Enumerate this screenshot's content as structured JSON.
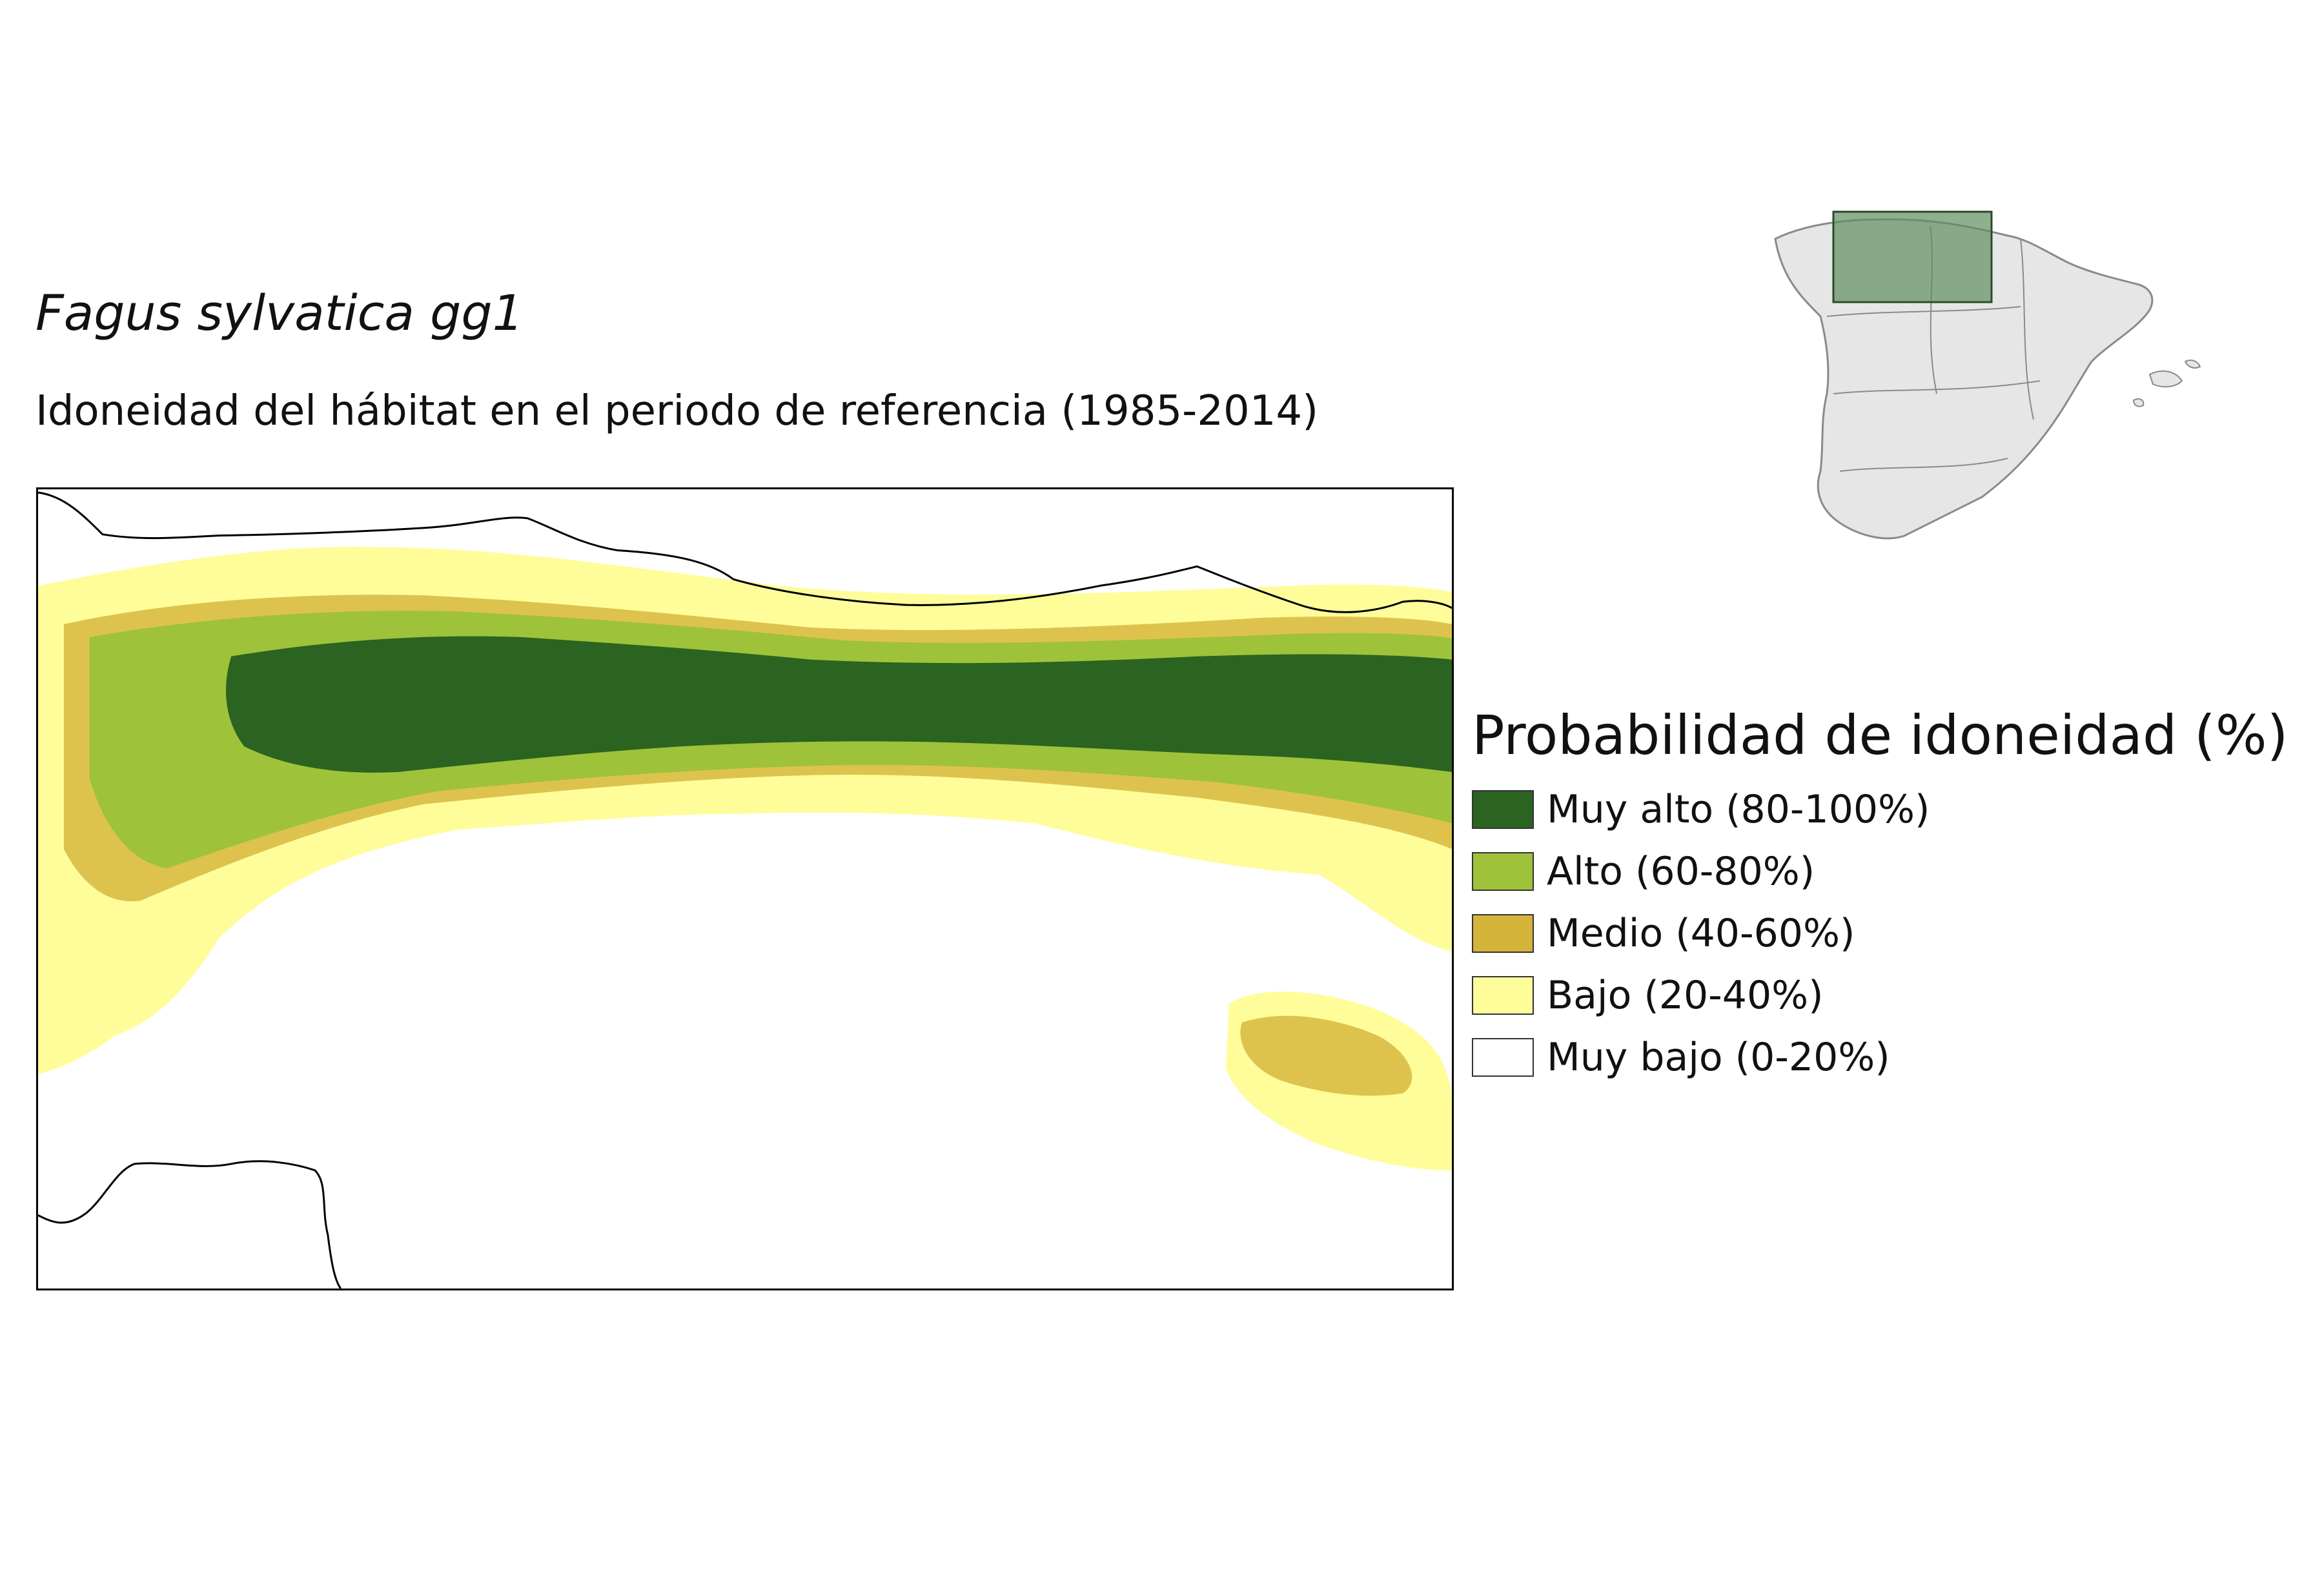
{
  "title": "Fagus sylvatica gg1",
  "subtitle": "Idoneidad del hábitat en el periodo de referencia (1985-2014)",
  "legend": {
    "title": "Probabilidad de idoneidad (%)",
    "items": [
      {
        "label": "Muy alto (80-100%)",
        "color": "#2a6420"
      },
      {
        "label": "Alto (60-80%)",
        "color": "#9fc23b"
      },
      {
        "label": "Medio (40-60%)",
        "color": "#d4b43a"
      },
      {
        "label": "Bajo (20-40%)",
        "color": "#fefd9a"
      },
      {
        "label": "Muy bajo (0-20%)",
        "color": "#ffffff"
      }
    ]
  },
  "colors": {
    "locator_land": "#e6e6e6",
    "locator_border": "#8a8a8a",
    "locator_highlight": "#5f8f5f"
  }
}
